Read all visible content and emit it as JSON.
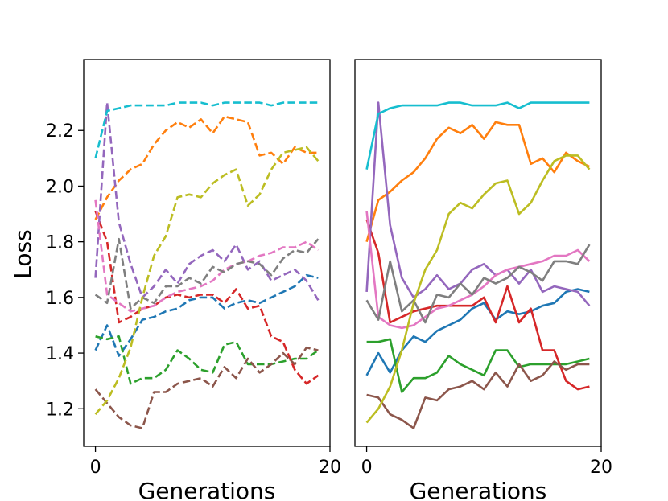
{
  "chart_data": {
    "type": "line",
    "ylabel": "Loss",
    "panels": [
      {
        "name": "left",
        "line_style": "dashed",
        "xlabel": "Generations",
        "xlim": [
          -1,
          20
        ],
        "ylim": [
          1.065,
          2.455
        ],
        "xticks": [
          0,
          20
        ],
        "yticks": [
          1.2,
          1.4,
          1.6,
          1.8,
          2.0,
          2.2
        ],
        "ytick_labels": [
          "1.2",
          "1.4",
          "1.6",
          "1.8",
          "2.0",
          "2.2"
        ],
        "show_yticks": true,
        "series": [
          {
            "color": "#1f77b4",
            "values": [
              1.41,
              1.5,
              1.39,
              1.45,
              1.52,
              1.53,
              1.55,
              1.56,
              1.59,
              1.6,
              1.6,
              1.56,
              1.58,
              1.59,
              1.58,
              1.6,
              1.62,
              1.64,
              1.68,
              1.67
            ]
          },
          {
            "color": "#ff7f0e",
            "values": [
              1.88,
              1.96,
              2.02,
              2.06,
              2.08,
              2.15,
              2.2,
              2.23,
              2.21,
              2.24,
              2.19,
              2.25,
              2.24,
              2.23,
              2.11,
              2.12,
              2.08,
              2.14,
              2.12,
              2.12
            ]
          },
          {
            "color": "#2ca02c",
            "values": [
              1.46,
              1.45,
              1.46,
              1.29,
              1.31,
              1.31,
              1.34,
              1.41,
              1.38,
              1.34,
              1.33,
              1.43,
              1.44,
              1.36,
              1.36,
              1.36,
              1.37,
              1.38,
              1.38,
              1.41
            ]
          },
          {
            "color": "#d62728",
            "values": [
              1.91,
              1.8,
              1.51,
              1.53,
              1.56,
              1.57,
              1.6,
              1.61,
              1.6,
              1.61,
              1.61,
              1.58,
              1.63,
              1.56,
              1.57,
              1.46,
              1.44,
              1.34,
              1.29,
              1.32
            ]
          },
          {
            "color": "#9467bd",
            "values": [
              1.67,
              2.3,
              1.87,
              1.72,
              1.6,
              1.64,
              1.7,
              1.65,
              1.72,
              1.75,
              1.77,
              1.73,
              1.79,
              1.7,
              1.73,
              1.66,
              1.68,
              1.7,
              1.66,
              1.59
            ]
          },
          {
            "color": "#8c564b",
            "values": [
              1.27,
              1.22,
              1.17,
              1.14,
              1.13,
              1.26,
              1.26,
              1.29,
              1.3,
              1.31,
              1.28,
              1.35,
              1.31,
              1.38,
              1.33,
              1.36,
              1.4,
              1.36,
              1.42,
              1.41
            ]
          },
          {
            "color": "#e377c2",
            "values": [
              1.95,
              1.61,
              1.58,
              1.55,
              1.56,
              1.57,
              1.6,
              1.62,
              1.63,
              1.64,
              1.66,
              1.7,
              1.72,
              1.73,
              1.75,
              1.76,
              1.78,
              1.78,
              1.8,
              1.77
            ]
          },
          {
            "color": "#7f7f7f",
            "values": [
              1.61,
              1.58,
              1.81,
              1.56,
              1.6,
              1.58,
              1.64,
              1.64,
              1.67,
              1.65,
              1.71,
              1.69,
              1.72,
              1.73,
              1.72,
              1.68,
              1.74,
              1.77,
              1.76,
              1.81
            ]
          },
          {
            "color": "#bcbd22",
            "values": [
              1.18,
              1.23,
              1.31,
              1.42,
              1.6,
              1.75,
              1.82,
              1.96,
              1.97,
              1.96,
              2.01,
              2.04,
              2.06,
              1.93,
              1.97,
              2.06,
              2.12,
              2.13,
              2.14,
              2.09
            ]
          },
          {
            "color": "#17becf",
            "values": [
              2.1,
              2.27,
              2.28,
              2.29,
              2.29,
              2.29,
              2.29,
              2.3,
              2.3,
              2.3,
              2.29,
              2.3,
              2.3,
              2.3,
              2.3,
              2.29,
              2.3,
              2.3,
              2.3,
              2.3
            ]
          }
        ]
      },
      {
        "name": "right",
        "line_style": "solid",
        "xlabel": "Generations",
        "xlim": [
          -1,
          20
        ],
        "ylim": [
          1.065,
          2.455
        ],
        "xticks": [
          0,
          20
        ],
        "yticks": [],
        "show_yticks": false,
        "series": [
          {
            "color": "#1f77b4",
            "values": [
              1.32,
              1.4,
              1.33,
              1.41,
              1.46,
              1.44,
              1.48,
              1.5,
              1.52,
              1.56,
              1.58,
              1.52,
              1.55,
              1.54,
              1.55,
              1.57,
              1.58,
              1.62,
              1.63,
              1.62
            ]
          },
          {
            "color": "#ff7f0e",
            "values": [
              1.8,
              1.95,
              1.98,
              2.02,
              2.05,
              2.1,
              2.17,
              2.21,
              2.19,
              2.22,
              2.17,
              2.23,
              2.22,
              2.22,
              2.08,
              2.1,
              2.05,
              2.12,
              2.09,
              2.07
            ]
          },
          {
            "color": "#2ca02c",
            "values": [
              1.44,
              1.44,
              1.45,
              1.26,
              1.31,
              1.31,
              1.33,
              1.39,
              1.36,
              1.34,
              1.32,
              1.41,
              1.41,
              1.35,
              1.36,
              1.36,
              1.36,
              1.36,
              1.37,
              1.38
            ]
          },
          {
            "color": "#d62728",
            "values": [
              1.88,
              1.76,
              1.51,
              1.53,
              1.55,
              1.56,
              1.57,
              1.57,
              1.57,
              1.57,
              1.6,
              1.51,
              1.64,
              1.51,
              1.56,
              1.41,
              1.41,
              1.3,
              1.27,
              1.28
            ]
          },
          {
            "color": "#9467bd",
            "values": [
              1.62,
              2.3,
              1.86,
              1.67,
              1.6,
              1.63,
              1.68,
              1.63,
              1.65,
              1.7,
              1.72,
              1.68,
              1.7,
              1.65,
              1.7,
              1.62,
              1.64,
              1.63,
              1.62,
              1.57
            ]
          },
          {
            "color": "#8c564b",
            "values": [
              1.25,
              1.24,
              1.18,
              1.16,
              1.13,
              1.24,
              1.23,
              1.27,
              1.28,
              1.3,
              1.27,
              1.33,
              1.28,
              1.36,
              1.3,
              1.32,
              1.37,
              1.34,
              1.36,
              1.36
            ]
          },
          {
            "color": "#e377c2",
            "values": [
              1.91,
              1.53,
              1.5,
              1.49,
              1.5,
              1.53,
              1.56,
              1.57,
              1.59,
              1.61,
              1.64,
              1.68,
              1.7,
              1.71,
              1.72,
              1.73,
              1.75,
              1.75,
              1.77,
              1.73
            ]
          },
          {
            "color": "#7f7f7f",
            "values": [
              1.59,
              1.52,
              1.73,
              1.55,
              1.59,
              1.51,
              1.61,
              1.6,
              1.65,
              1.61,
              1.67,
              1.65,
              1.67,
              1.71,
              1.69,
              1.66,
              1.73,
              1.73,
              1.72,
              1.79
            ]
          },
          {
            "color": "#bcbd22",
            "values": [
              1.15,
              1.2,
              1.28,
              1.41,
              1.58,
              1.7,
              1.77,
              1.9,
              1.94,
              1.92,
              1.97,
              2.01,
              2.02,
              1.9,
              1.94,
              2.02,
              2.09,
              2.11,
              2.11,
              2.06
            ]
          },
          {
            "color": "#17becf",
            "values": [
              2.06,
              2.26,
              2.28,
              2.29,
              2.29,
              2.29,
              2.29,
              2.3,
              2.3,
              2.29,
              2.29,
              2.29,
              2.3,
              2.28,
              2.3,
              2.3,
              2.3,
              2.3,
              2.3,
              2.3
            ]
          }
        ]
      }
    ]
  }
}
